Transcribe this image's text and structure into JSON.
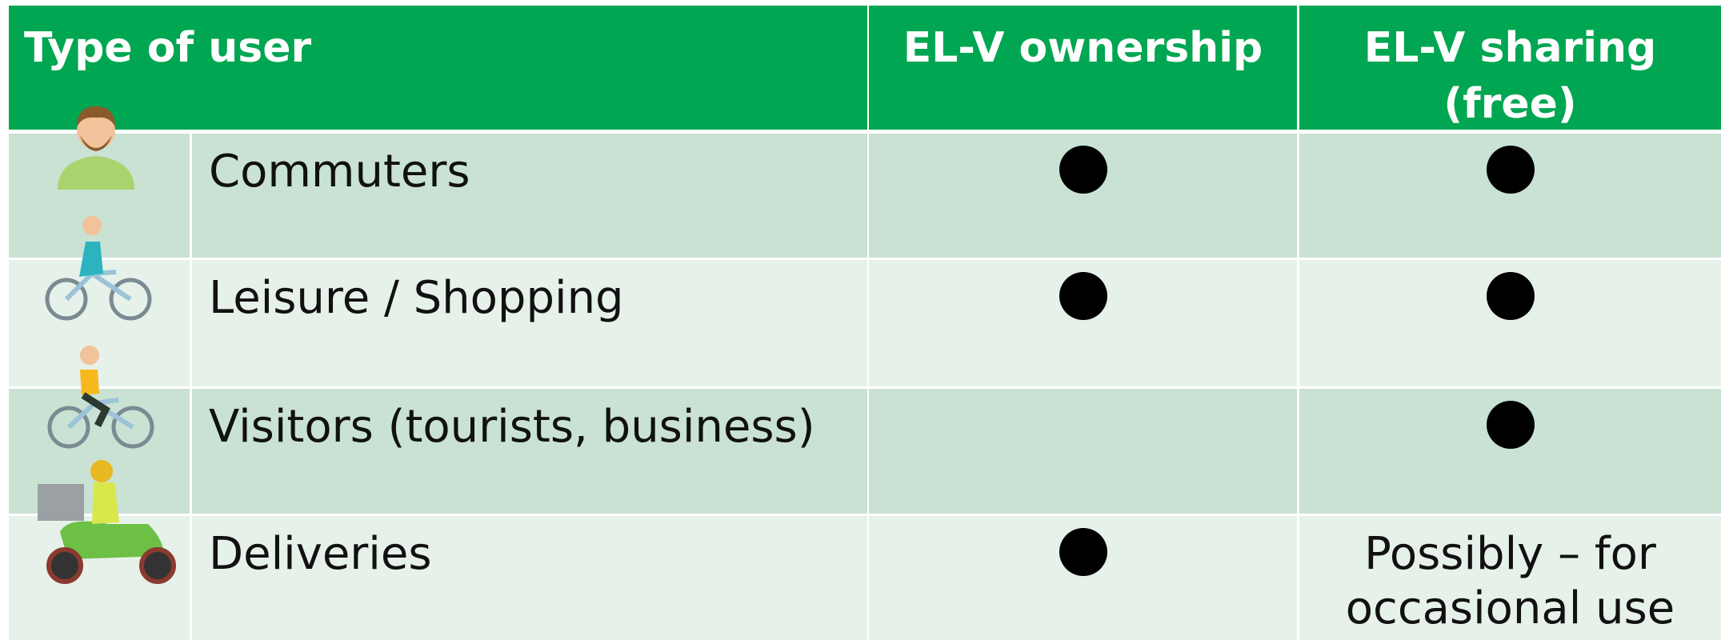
{
  "header": {
    "columns": [
      "Type of user",
      "EL-V ownership",
      "EL-V sharing (free)"
    ]
  },
  "table": {
    "rows": [
      {
        "user": "Commuters",
        "ownership": true,
        "sharing": true
      },
      {
        "user": "Leisure / Shopping",
        "ownership": true,
        "sharing": true
      },
      {
        "user": "Visitors (tourists, business)",
        "ownership": false,
        "sharing": true
      },
      {
        "user": "Deliveries",
        "ownership": true,
        "sharing": "Possibly – for occasional use"
      }
    ]
  }
}
